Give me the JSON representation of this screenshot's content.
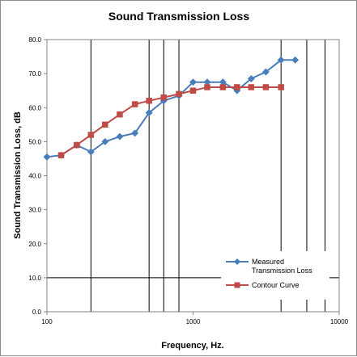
{
  "chart_data": {
    "type": "line",
    "title": "Sound Transmission Loss",
    "xlabel": "Frequency, Hz.",
    "ylabel": "Sound Transmission Loss, dB",
    "xscale": "log",
    "xlim": [
      100,
      10000
    ],
    "ylim": [
      0,
      80
    ],
    "xticks": [
      "100",
      "1000",
      "10000"
    ],
    "yticks": [
      "0.0",
      "10.0",
      "20.0",
      "30.0",
      "40.0",
      "50.0",
      "60.0",
      "70.0",
      "80.0"
    ],
    "vertical_gridlines_x": [
      200,
      500,
      630,
      800,
      4000,
      6000,
      8000
    ],
    "horizontal_gridlines_y": [
      10
    ],
    "legend_position": "lower-right",
    "series": [
      {
        "name": "Measured Transmission Loss",
        "name_lines": [
          "Measured",
          "Transmission Loss"
        ],
        "color": "#4a7ebb",
        "marker": "diamond",
        "x": [
          100,
          125,
          160,
          200,
          250,
          315,
          400,
          500,
          630,
          800,
          1000,
          1250,
          1600,
          2000,
          2500,
          3150,
          4000,
          5000
        ],
        "y": [
          45.5,
          46,
          49,
          47,
          50,
          51.5,
          52.5,
          58.5,
          62,
          63.5,
          67.5,
          67.5,
          67.5,
          65,
          68.5,
          70.5,
          74,
          74
        ]
      },
      {
        "name": "Contour Curve",
        "name_lines": [
          "Contour Curve"
        ],
        "color": "#be4b48",
        "marker": "square",
        "x": [
          125,
          160,
          200,
          250,
          315,
          400,
          500,
          630,
          800,
          1000,
          1250,
          1600,
          2000,
          2500,
          3150,
          4000
        ],
        "y": [
          46,
          49,
          52,
          55,
          58,
          61,
          62,
          63,
          64,
          65,
          66,
          66,
          66,
          66,
          66,
          66
        ]
      }
    ]
  }
}
